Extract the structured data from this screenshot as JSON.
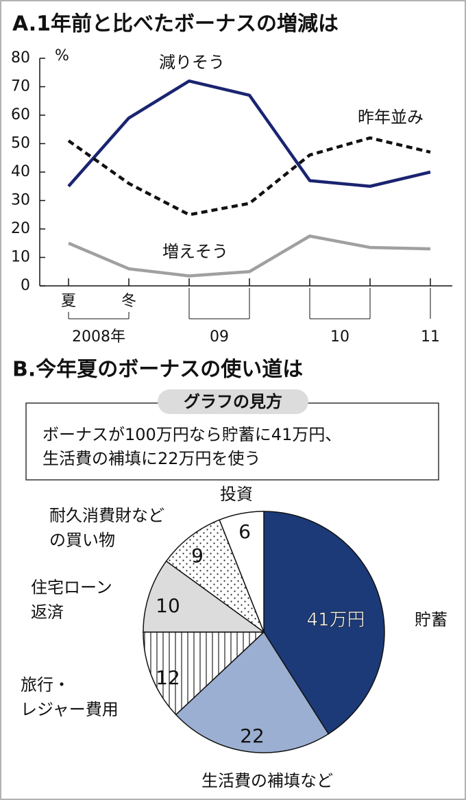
{
  "charts": [
    {
      "type": "line",
      "title": "A.1年前と比べたボーナスの増減は",
      "y_label": "%",
      "categories": [
        "夏",
        "冬",
        null,
        null,
        null,
        null,
        null
      ],
      "x_groups": [
        "2008年",
        "09",
        "10",
        "11"
      ],
      "ylim": [
        0,
        80
      ],
      "yticks": [
        0,
        10,
        20,
        30,
        40,
        50,
        60,
        70,
        80
      ],
      "series": [
        {
          "name": "減りそう",
          "color": "#1a2470",
          "style": "solid",
          "values": [
            35,
            59,
            72,
            67,
            37,
            35,
            40
          ]
        },
        {
          "name": "昨年並み",
          "color": "#111111",
          "style": "dashed",
          "values": [
            51,
            36,
            25,
            29,
            46,
            52,
            47
          ]
        },
        {
          "name": "増えそう",
          "color": "#a0a0a0",
          "style": "solid",
          "values": [
            15,
            6,
            3.5,
            5,
            17.5,
            13.5,
            13
          ]
        }
      ]
    },
    {
      "type": "pie",
      "title": "B.今年夏のボーナスの使い道は",
      "note_title": "グラフの見方",
      "note_lines": [
        "ボーナスが100万円なら貯蓄に41万円、",
        "生活費の補填に22万円を使う"
      ],
      "labels": [
        [
          "貯蓄"
        ],
        [
          "生活費の補填など"
        ],
        [
          "旅行・",
          "レジャー費用"
        ],
        [
          "住宅ローン",
          "返済"
        ],
        [
          "耐久消費財など",
          "の買い物"
        ],
        [
          "投資"
        ]
      ],
      "values": [
        41,
        22,
        12,
        10,
        9,
        6
      ],
      "value_labels": [
        "41万円",
        "22",
        "12",
        "10",
        "9",
        "6"
      ],
      "fills": [
        "#1c3a78",
        "#9bafd2",
        "stripes",
        "#dcdcdc",
        "dots",
        "#ffffff"
      ]
    }
  ]
}
